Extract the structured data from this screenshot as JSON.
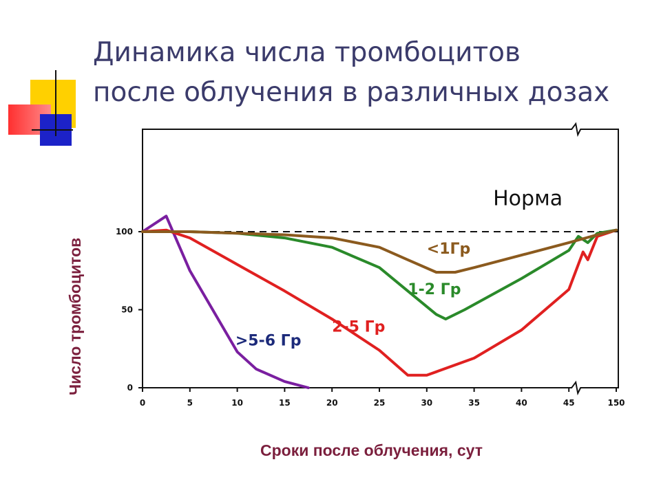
{
  "title": {
    "line1": "Динамика числа тромбоцитов",
    "line2": "после облучения в различных дозах"
  },
  "colors": {
    "title": "#3b3b6b",
    "axis_label": "#7b1f3d",
    "deco_yellow": "#ffd000",
    "deco_red": "#ff2a2a",
    "deco_blue": "#1c22c8"
  },
  "chart_data": {
    "type": "line",
    "title": "Динамика числа тромбоцитов после облучения в различных дозах",
    "xlabel": "Сроки после облучения, сут",
    "ylabel": "Число тромбоцитов",
    "xticks": [
      "0",
      "5",
      "10",
      "15",
      "20",
      "25",
      "30",
      "35",
      "40",
      "45",
      "150"
    ],
    "yticks": [
      "0",
      "50",
      "100"
    ],
    "xlim": [
      0,
      50
    ],
    "ylim": [
      0,
      100
    ],
    "axis_break": "45–150",
    "grid": false,
    "reference_line": {
      "label": "Норма",
      "y": 100,
      "style": "dashed"
    },
    "series": [
      {
        "name": "<1Гр",
        "color": "#8b5a1e",
        "x": [
          0,
          5,
          10,
          15,
          20,
          25,
          28,
          31,
          33,
          35,
          40,
          45,
          48,
          50
        ],
        "y": [
          100,
          100,
          99,
          98,
          96,
          90,
          82,
          74,
          74,
          77,
          85,
          93,
          98,
          101
        ]
      },
      {
        "name": "1-2 Гр",
        "color": "#2a8a2a",
        "x": [
          0,
          5,
          10,
          15,
          20,
          25,
          28,
          31,
          32,
          34,
          40,
          45,
          46,
          47,
          48,
          50
        ],
        "y": [
          100,
          100,
          99,
          96,
          90,
          77,
          62,
          47,
          44,
          50,
          70,
          88,
          97,
          93,
          99,
          101
        ]
      },
      {
        "name": "2-5 Гр",
        "color": "#e02020",
        "x": [
          0,
          2.5,
          5,
          10,
          15,
          20,
          25,
          28,
          30,
          35,
          40,
          45,
          46.5,
          47,
          48,
          50
        ],
        "y": [
          100,
          101,
          96,
          79,
          62,
          44,
          24,
          8,
          8,
          19,
          37,
          63,
          87,
          82,
          97,
          101
        ]
      },
      {
        "name": ">5-6 Гр",
        "color": "#7a1fa0",
        "x": [
          0,
          2.5,
          5,
          10,
          12,
          15,
          17.5
        ],
        "y": [
          100,
          110,
          75,
          23,
          12,
          4,
          0
        ]
      }
    ]
  }
}
